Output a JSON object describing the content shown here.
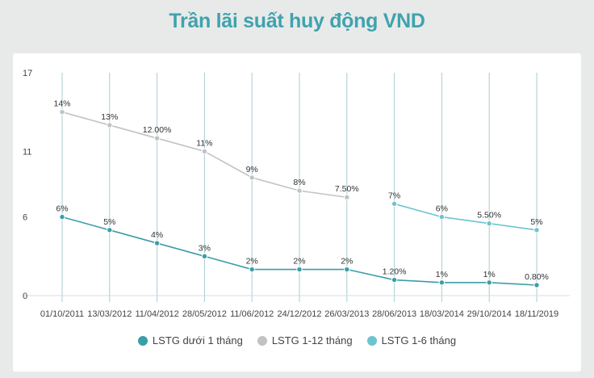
{
  "chart_data": {
    "type": "line",
    "title": "Trần lãi suất huy động VND",
    "xlabel": "",
    "ylabel": "",
    "categories": [
      "01/10/2011",
      "13/03/2012",
      "11/04/2012",
      "28/05/2012",
      "11/06/2012",
      "24/12/2012",
      "26/03/2013",
      "28/06/2013",
      "18/03/2014",
      "29/10/2014",
      "18/11/2019"
    ],
    "y_ticks": [
      "0",
      "6",
      "11",
      "17"
    ],
    "ylim": [
      0,
      17
    ],
    "grid": "vertical",
    "legend_position": "bottom",
    "series": [
      {
        "name": "LSTG dưới 1 tháng",
        "color": "#3a9ea8",
        "values": [
          6,
          5,
          4,
          3,
          2,
          2,
          2,
          1.2,
          1,
          1,
          0.8
        ],
        "labels": [
          "6%",
          "5%",
          "4%",
          "3%",
          "2%",
          "2%",
          "2%",
          "1.20%",
          "1%",
          "1%",
          "0.80%"
        ]
      },
      {
        "name": "LSTG 1-12 tháng",
        "color": "#c2c2c2",
        "values": [
          14,
          13,
          12,
          11,
          9,
          8,
          7.5,
          null,
          null,
          null,
          null
        ],
        "labels": [
          "14%",
          "13%",
          "12.00%",
          "11%",
          "9%",
          "8%",
          "7.50%",
          null,
          null,
          null,
          null
        ]
      },
      {
        "name": "LSTG 1-6 tháng",
        "color": "#6cc5ce",
        "values": [
          null,
          null,
          null,
          null,
          null,
          null,
          null,
          7,
          6,
          5.5,
          5
        ],
        "labels": [
          null,
          null,
          null,
          null,
          null,
          null,
          null,
          "7%",
          "6%",
          "5.50%",
          "5%"
        ]
      }
    ]
  }
}
